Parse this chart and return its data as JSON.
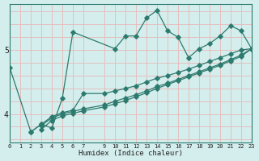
{
  "xlabel": "Humidex (Indice chaleur)",
  "bg_color": "#d4eeed",
  "line_color": "#2d7a6e",
  "xmin": 0,
  "xmax": 23,
  "ymin": 3.55,
  "ymax": 5.72,
  "yticks": [
    4,
    5
  ],
  "xticks": [
    0,
    1,
    2,
    3,
    4,
    5,
    6,
    7,
    9,
    10,
    11,
    12,
    13,
    14,
    15,
    16,
    17,
    18,
    19,
    20,
    21,
    22,
    23
  ],
  "vgrid_color": "#e8b8b8",
  "hgrid_color": "#e8b8b8",
  "line1_x": [
    0,
    2,
    3,
    4,
    5,
    6,
    10,
    11,
    12,
    13,
    14,
    15,
    16,
    17,
    18,
    19,
    20,
    21,
    22,
    23
  ],
  "line1_y": [
    4.72,
    3.72,
    3.84,
    3.78,
    4.25,
    5.28,
    5.02,
    5.22,
    5.22,
    5.5,
    5.62,
    5.3,
    5.2,
    4.88,
    5.02,
    5.1,
    5.22,
    5.38,
    5.3,
    5.02
  ],
  "line2_x": [
    2,
    3,
    4,
    5,
    6,
    7,
    9,
    10,
    11,
    12,
    13,
    14,
    15,
    16,
    17,
    18,
    19,
    20,
    21,
    22,
    23
  ],
  "line2_y": [
    3.72,
    3.84,
    3.96,
    4.02,
    4.06,
    4.32,
    4.32,
    4.36,
    4.4,
    4.44,
    4.5,
    4.56,
    4.6,
    4.65,
    4.7,
    4.76,
    4.82,
    4.88,
    4.94,
    5.0,
    5.02
  ],
  "line3_x": [
    3,
    4,
    5,
    6,
    7,
    9,
    10,
    11,
    12,
    13,
    14,
    15,
    16,
    17,
    18,
    19,
    20,
    21,
    22,
    23
  ],
  "line3_y": [
    3.82,
    3.94,
    4.0,
    4.04,
    4.08,
    4.14,
    4.2,
    4.25,
    4.3,
    4.36,
    4.43,
    4.48,
    4.54,
    4.6,
    4.66,
    4.72,
    4.78,
    4.85,
    4.92,
    5.02
  ],
  "line4_x": [
    3,
    4,
    5,
    6,
    7,
    9,
    10,
    11,
    12,
    13,
    14,
    15,
    16,
    17,
    18,
    19,
    20,
    21,
    22,
    23
  ],
  "line4_y": [
    3.76,
    3.9,
    3.97,
    4.01,
    4.05,
    4.11,
    4.16,
    4.21,
    4.27,
    4.33,
    4.4,
    4.46,
    4.52,
    4.58,
    4.64,
    4.7,
    4.76,
    4.83,
    4.9,
    5.02
  ]
}
